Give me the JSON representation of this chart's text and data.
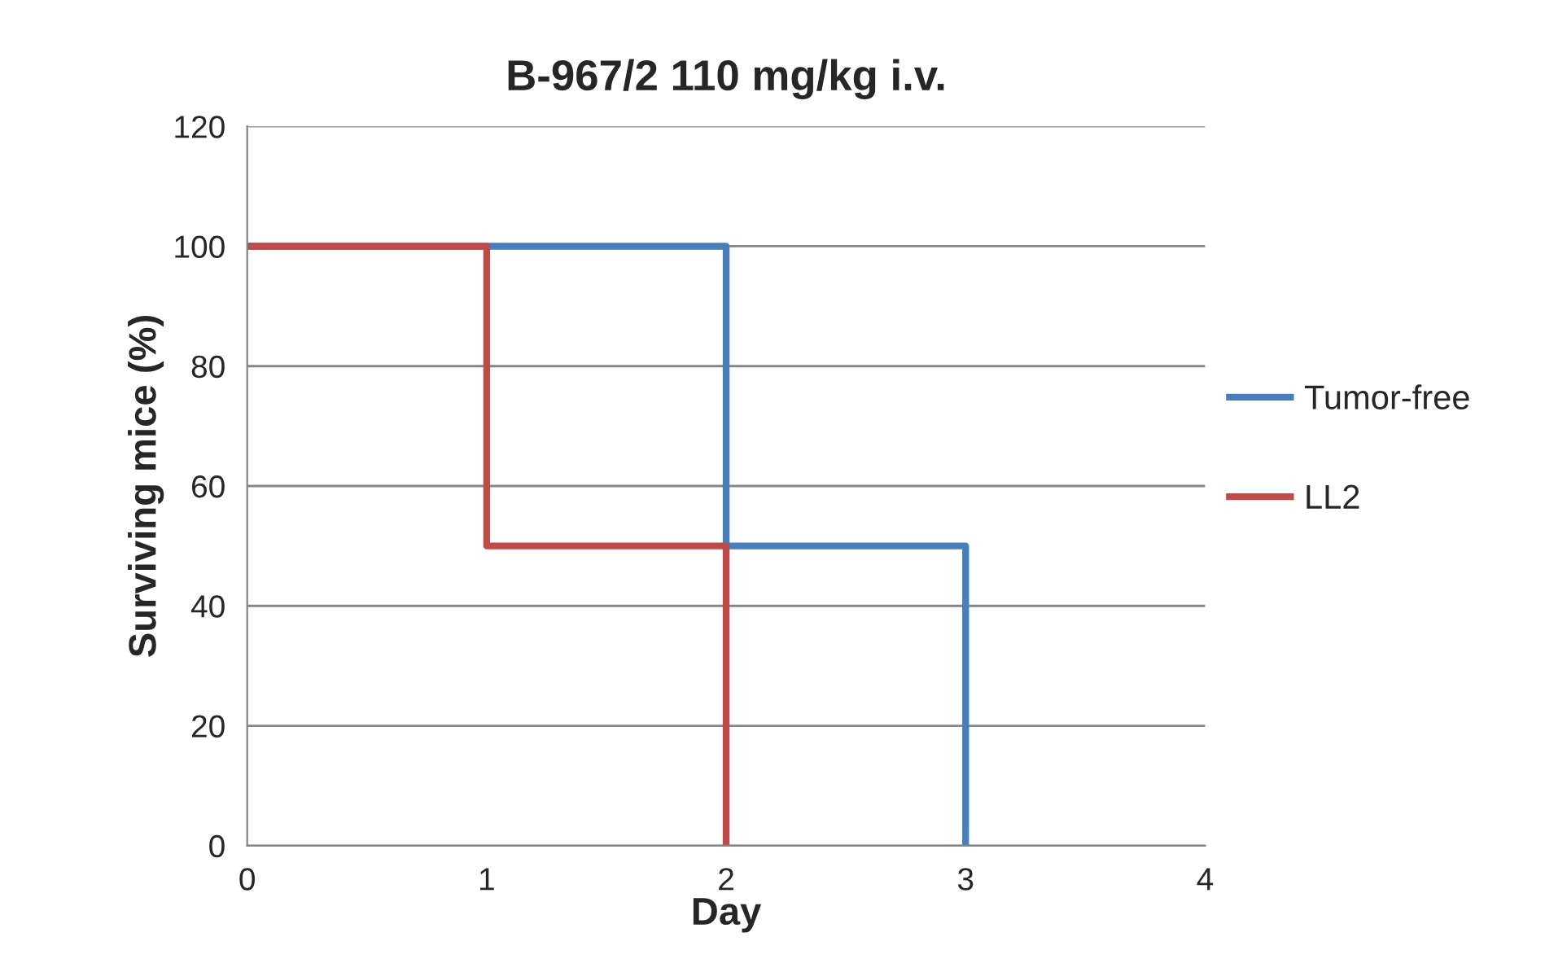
{
  "chart_data": {
    "type": "step",
    "title": "B-967/2 110 mg/kg i.v.",
    "xlabel": "Day",
    "ylabel": "Surviving mice (%)",
    "series": [
      {
        "name": "Tumor-free",
        "color": "#4a7ebb",
        "x": [
          0,
          2,
          3
        ],
        "values": [
          100,
          50,
          0
        ]
      },
      {
        "name": "LL2",
        "color": "#be4b48",
        "x": [
          0,
          1,
          2
        ],
        "values": [
          100,
          50,
          0
        ]
      }
    ],
    "xlim": [
      0,
      4
    ],
    "xticks": [
      0,
      1,
      2,
      3,
      4
    ],
    "ylim": [
      0,
      120
    ],
    "yticks": [
      0,
      20,
      40,
      60,
      80,
      100,
      120
    ],
    "grid": "y",
    "legend": "right",
    "marker": "none",
    "line_style": "solid"
  }
}
